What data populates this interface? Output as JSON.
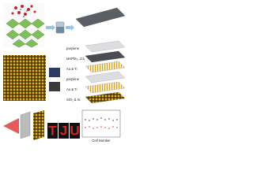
{
  "layers": [
    "parylene",
    "MAPbI₃₋ₓClₓ",
    "Au & Ti",
    "parylene",
    "Au & Ti",
    "SiO₂ & Si"
  ],
  "letters": [
    "T",
    "J",
    "U"
  ],
  "plot": {
    "x_label": "Cell Number"
  }
}
